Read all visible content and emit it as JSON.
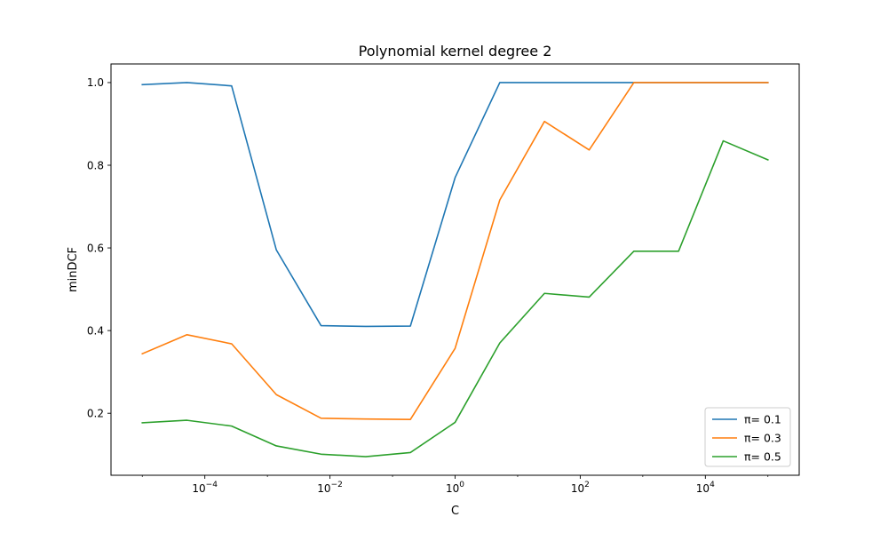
{
  "chart_data": {
    "type": "line",
    "title": "Polynomial kernel degree 2",
    "xlabel": "C",
    "ylabel": "minDCF",
    "xscale": "log",
    "xlim_log10": [
      -5.5,
      5.5
    ],
    "ylim": [
      0.05,
      1.045
    ],
    "x_ticks": [
      {
        "exp": -4,
        "base": "10",
        "power": "−4"
      },
      {
        "exp": -2,
        "base": "10",
        "power": "−2"
      },
      {
        "exp": 0,
        "base": "10",
        "power": "0"
      },
      {
        "exp": 2,
        "base": "10",
        "power": "2"
      },
      {
        "exp": 4,
        "base": "10",
        "power": "4"
      }
    ],
    "y_ticks": [
      {
        "value": 0.2,
        "label": "0.2"
      },
      {
        "value": 0.4,
        "label": "0.4"
      },
      {
        "value": 0.6,
        "label": "0.6"
      },
      {
        "value": 0.8,
        "label": "0.8"
      },
      {
        "value": 1.0,
        "label": "1.0"
      }
    ],
    "x": [
      1e-05,
      5.18e-05,
      0.000268,
      0.00139,
      0.0072,
      0.0373,
      0.193,
      1.0,
      5.18,
      26.8,
      139,
      720,
      3730,
      19300,
      100000
    ],
    "grid": false,
    "legend_position": "lower-right",
    "series": [
      {
        "name": "π= 0.1",
        "color": "#1f77b4",
        "values": [
          0.995,
          1.0,
          0.992,
          0.595,
          0.412,
          0.41,
          0.411,
          0.77,
          1.0,
          1.0,
          1.0,
          1.0,
          1.0,
          1.0,
          1.0
        ]
      },
      {
        "name": "π= 0.3",
        "color": "#ff7f0e",
        "values": [
          0.344,
          0.39,
          0.368,
          0.245,
          0.188,
          0.186,
          0.185,
          0.357,
          0.716,
          0.906,
          0.837,
          1.0,
          1.0,
          1.0,
          1.0
        ]
      },
      {
        "name": "π= 0.5",
        "color": "#2ca02c",
        "values": [
          0.177,
          0.183,
          0.169,
          0.121,
          0.101,
          0.095,
          0.105,
          0.178,
          0.37,
          0.49,
          0.481,
          0.592,
          0.592,
          0.859,
          0.813
        ]
      }
    ]
  }
}
